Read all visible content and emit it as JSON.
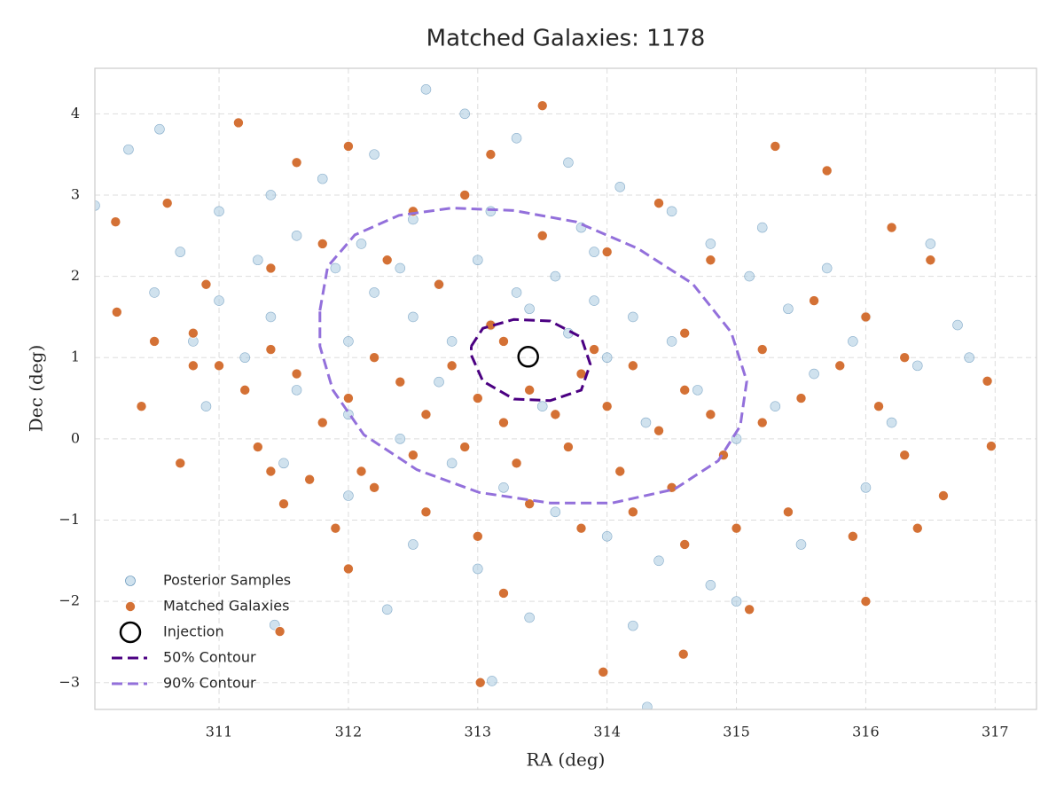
{
  "chart_data": {
    "type": "scatter",
    "title": "Matched Galaxies: 1178",
    "xlabel": "RA (deg)",
    "ylabel": "Dec (deg)",
    "xlim": [
      310.04,
      317.32
    ],
    "ylim": [
      -3.33,
      4.56
    ],
    "xticks": [
      311,
      312,
      313,
      314,
      315,
      316,
      317
    ],
    "yticks": [
      {
        "value": -3,
        "label": "−3"
      },
      {
        "value": -2,
        "label": "−2"
      },
      {
        "value": -1,
        "label": "−1"
      },
      0,
      1,
      2,
      3,
      4
    ],
    "grid": true,
    "legend": "lower left",
    "series": [
      {
        "name": "Posterior Samples",
        "style": "points",
        "color": "#a9cbe0",
        "edgecolor": "#4f86b0",
        "x": [
          310.3,
          310.54,
          316.71,
          314.31,
          313.11,
          311.43,
          312.1,
          312.4,
          312.7,
          313.0,
          313.3,
          313.6,
          313.9,
          314.2,
          314.5,
          312.5,
          312.8,
          313.1,
          313.4,
          313.7,
          314.0,
          312.2,
          311.9,
          311.6,
          311.3,
          311.0,
          310.8,
          311.2,
          311.6,
          312.0,
          312.4,
          312.8,
          313.2,
          313.6,
          314.0,
          314.4,
          314.8,
          313.0,
          312.5,
          315.0,
          315.3,
          315.6,
          315.9,
          315.4,
          315.1,
          314.8,
          314.5,
          314.1,
          313.7,
          313.3,
          312.9,
          312.6,
          312.2,
          311.8,
          311.4,
          311.0,
          310.7,
          310.5,
          310.9,
          311.5,
          312.0,
          312.3,
          313.4,
          314.2,
          315.0,
          315.5,
          316.0,
          316.2,
          316.4,
          316.0,
          315.7,
          315.2,
          313.8,
          313.1,
          312.5,
          312.0,
          313.5,
          314.3,
          314.7,
          313.9,
          312.7,
          311.4,
          310.04,
          316.5,
          316.8
        ],
        "y": [
          3.56,
          3.81,
          1.4,
          -3.3,
          -2.98,
          -2.29,
          2.4,
          2.1,
          1.9,
          2.2,
          1.8,
          2.0,
          1.7,
          1.5,
          1.2,
          1.5,
          1.2,
          1.4,
          1.6,
          1.3,
          1.0,
          1.8,
          2.1,
          2.5,
          2.2,
          1.7,
          1.2,
          1.0,
          0.6,
          0.3,
          0.0,
          -0.3,
          -0.6,
          -0.9,
          -1.2,
          -1.5,
          -1.8,
          -1.6,
          -1.3,
          0.0,
          0.4,
          0.8,
          1.2,
          1.6,
          2.0,
          2.4,
          2.8,
          3.1,
          3.4,
          3.7,
          4.0,
          4.3,
          3.5,
          3.2,
          3.0,
          2.8,
          2.3,
          1.8,
          0.4,
          -0.3,
          -0.7,
          -2.1,
          -2.2,
          -2.3,
          -2.0,
          -1.3,
          -0.6,
          0.2,
          0.9,
          1.5,
          2.1,
          2.6,
          2.6,
          2.8,
          2.7,
          1.2,
          0.4,
          0.2,
          0.6,
          2.3,
          0.7,
          1.5,
          2.87,
          2.4,
          1.0
        ]
      },
      {
        "name": "Matched Galaxies",
        "style": "points",
        "color": "#d2692a",
        "edgecolor": "#ffffff",
        "x": [
          310.2,
          310.21,
          313.02,
          316.97,
          316.94,
          314.59,
          313.97,
          311.47,
          311.15,
          313.0,
          313.2,
          313.4,
          313.6,
          313.8,
          314.0,
          314.2,
          314.4,
          314.6,
          314.8,
          312.8,
          312.6,
          312.4,
          312.2,
          312.0,
          311.8,
          311.6,
          311.4,
          311.2,
          311.0,
          310.8,
          310.5,
          310.4,
          310.7,
          311.3,
          311.7,
          312.1,
          312.5,
          312.9,
          313.3,
          313.7,
          314.1,
          314.5,
          314.9,
          315.2,
          315.5,
          315.8,
          316.1,
          316.3,
          316.6,
          316.4,
          315.9,
          315.4,
          315.0,
          314.6,
          314.2,
          313.8,
          313.4,
          313.0,
          312.6,
          312.2,
          311.9,
          311.5,
          313.2,
          313.9,
          314.6,
          315.2,
          315.6,
          316.0,
          316.3,
          312.7,
          312.3,
          311.8,
          311.4,
          310.9,
          312.5,
          312.9,
          313.5,
          314.0,
          314.4,
          314.8,
          315.3,
          315.7,
          316.5,
          316.2,
          313.1,
          312.0,
          311.6,
          310.6,
          313.5,
          313.1,
          315.1,
          313.2,
          312.0,
          316.0,
          311.4,
          310.8
        ],
        "y": [
          2.67,
          1.56,
          -3.0,
          -0.09,
          0.71,
          -2.65,
          -2.87,
          -2.37,
          3.89,
          0.5,
          0.2,
          0.6,
          0.3,
          0.8,
          0.4,
          0.9,
          0.1,
          0.6,
          0.3,
          0.9,
          0.3,
          0.7,
          1.0,
          0.5,
          0.2,
          0.8,
          1.1,
          0.6,
          0.9,
          1.3,
          1.2,
          0.4,
          -0.3,
          -0.1,
          -0.5,
          -0.4,
          -0.2,
          -0.1,
          -0.3,
          -0.1,
          -0.4,
          -0.6,
          -0.2,
          0.2,
          0.5,
          0.9,
          0.4,
          -0.2,
          -0.7,
          -1.1,
          -1.2,
          -0.9,
          -1.1,
          -1.3,
          -0.9,
          -1.1,
          -0.8,
          -1.2,
          -0.9,
          -0.6,
          -1.1,
          -0.8,
          1.2,
          1.1,
          1.3,
          1.1,
          1.7,
          1.5,
          1.0,
          1.9,
          2.2,
          2.4,
          2.1,
          1.9,
          2.8,
          3.0,
          2.5,
          2.3,
          2.9,
          2.2,
          3.6,
          3.3,
          2.2,
          2.6,
          3.5,
          3.6,
          3.4,
          2.9,
          4.1,
          1.4,
          -2.1,
          -1.9,
          -1.6,
          -2.0,
          -0.4,
          0.9
        ]
      },
      {
        "name": "Injection",
        "style": "ring",
        "color": "#000000",
        "x": [
          313.39
        ],
        "y": [
          1.01
        ]
      },
      {
        "name": "50% Contour",
        "style": "dashed-line",
        "color": "#4b0082",
        "x": [
          312.95,
          313.04,
          313.28,
          313.56,
          313.8,
          313.87,
          313.8,
          313.56,
          313.28,
          313.04,
          312.95,
          312.95
        ],
        "y": [
          1.14,
          1.36,
          1.47,
          1.45,
          1.25,
          0.92,
          0.6,
          0.47,
          0.49,
          0.71,
          1.03,
          1.14
        ]
      },
      {
        "name": "90% Contour",
        "style": "dashed-line",
        "color": "#9370db",
        "x": [
          311.78,
          311.84,
          312.05,
          312.39,
          312.8,
          313.28,
          313.76,
          314.24,
          314.66,
          314.96,
          315.08,
          315.03,
          314.86,
          314.52,
          314.04,
          313.56,
          313.01,
          312.53,
          312.12,
          311.88,
          311.78,
          311.78
        ],
        "y": [
          1.58,
          2.12,
          2.51,
          2.75,
          2.84,
          2.81,
          2.67,
          2.34,
          1.91,
          1.31,
          0.71,
          0.16,
          -0.27,
          -0.62,
          -0.79,
          -0.79,
          -0.66,
          -0.38,
          0.05,
          0.6,
          1.14,
          1.58
        ]
      }
    ]
  }
}
